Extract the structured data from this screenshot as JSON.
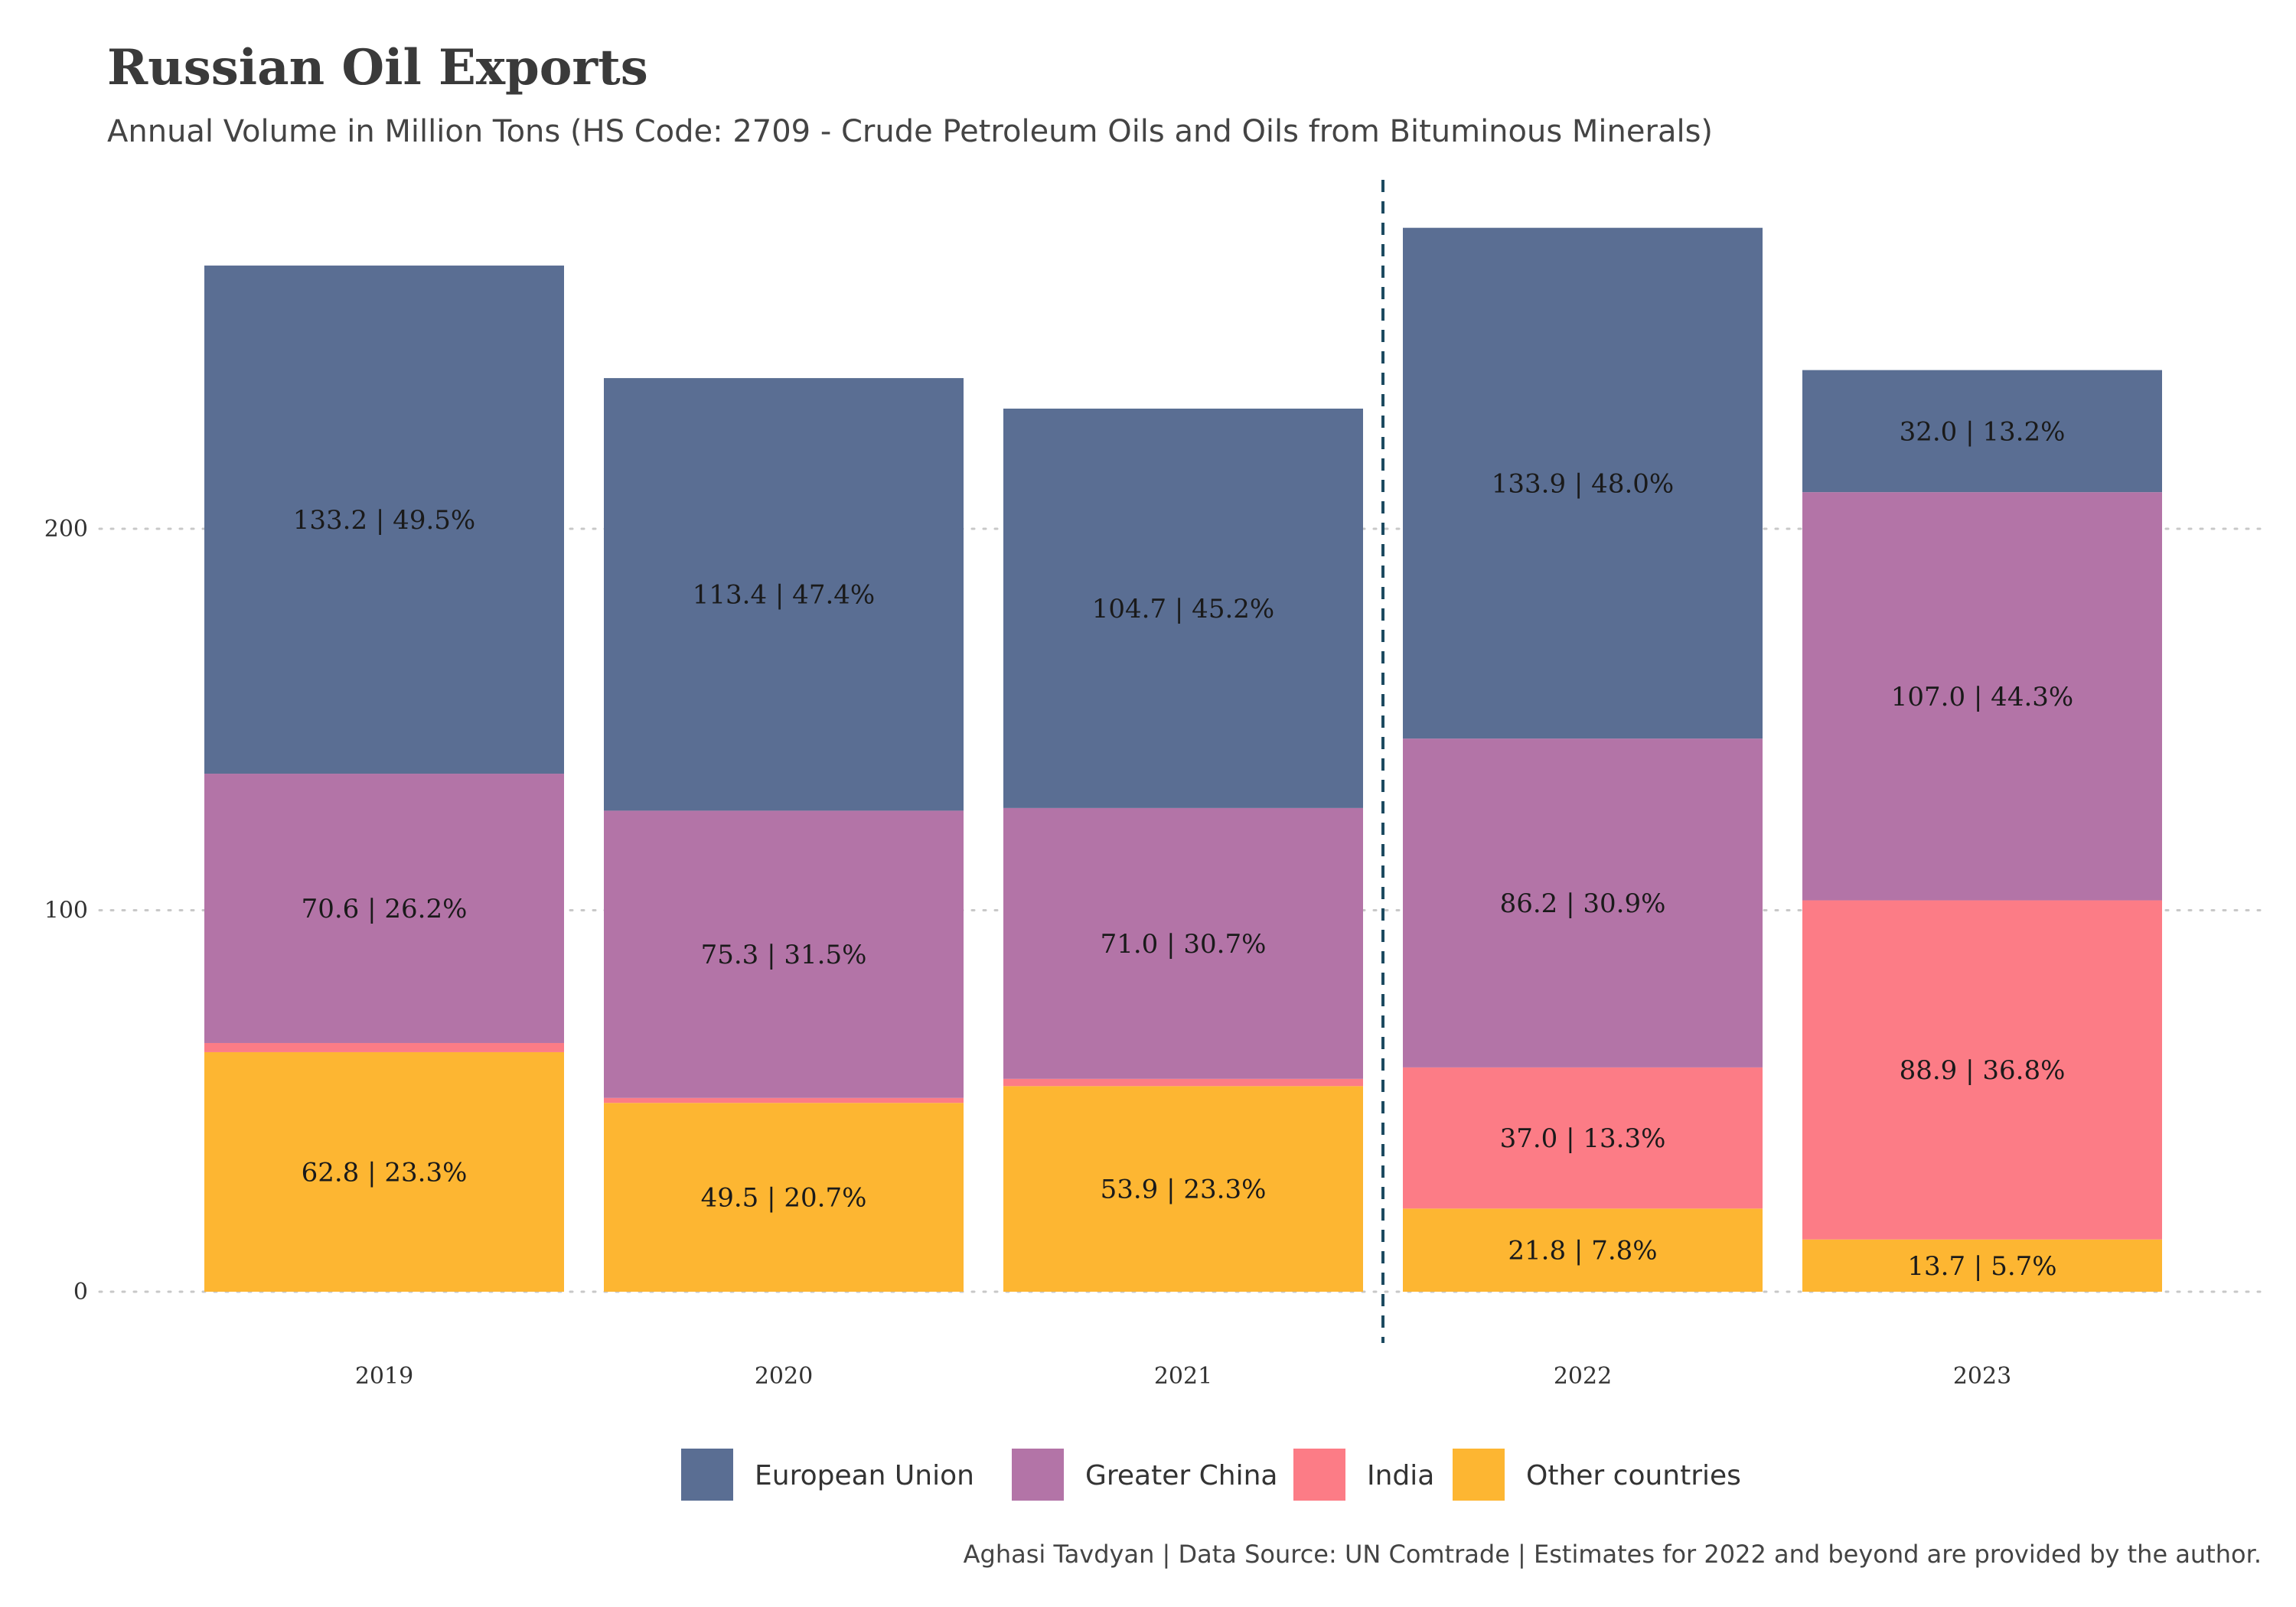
{
  "title": "Russian Oil Exports",
  "subtitle": "Annual Volume in Million Tons (HS Code: 2709 - Crude Petroleum Oils and Oils from Bituminous Minerals)",
  "caption": "Aghasi Tavdyan | Data Source: UN Comtrade | Estimates for 2022 and beyond are provided by the author.",
  "chart_data": {
    "type": "bar",
    "stacked": true,
    "categories": [
      "2019",
      "2020",
      "2021",
      "2022",
      "2023"
    ],
    "ylim": [
      0,
      280
    ],
    "yticks": [
      0,
      100,
      200
    ],
    "grid": "horizontal-dotted",
    "legend_position": "bottom",
    "reference_line": {
      "between": [
        "2021",
        "2022"
      ],
      "style": "dashed"
    },
    "series": [
      {
        "name": "Other countries",
        "color": "#FDB632",
        "values": [
          62.8,
          49.5,
          53.9,
          21.8,
          13.7
        ],
        "labels": [
          "62.8 | 23.3%",
          "49.5 | 20.7%",
          "53.9 | 23.3%",
          "21.8 | 7.8%",
          "13.7 | 5.7%"
        ]
      },
      {
        "name": "India",
        "color": "#FC7C86",
        "values": [
          2.4,
          1.3,
          1.9,
          37.0,
          88.9
        ],
        "labels": [
          null,
          null,
          null,
          "37.0 | 13.3%",
          "88.9 | 36.8%"
        ]
      },
      {
        "name": "Greater China",
        "color": "#B374A7",
        "values": [
          70.6,
          75.3,
          71.0,
          86.2,
          107.0
        ],
        "labels": [
          "70.6 | 26.2%",
          "75.3 | 31.5%",
          "71.0 | 30.7%",
          "86.2 | 30.9%",
          "107.0 | 44.3%"
        ]
      },
      {
        "name": "European Union",
        "color": "#5A6E93",
        "values": [
          133.2,
          113.4,
          104.7,
          133.9,
          32.0
        ],
        "labels": [
          "133.2 | 49.5%",
          "113.4 | 47.4%",
          "104.7 | 45.2%",
          "133.9 | 48.0%",
          "32.0 | 13.2%"
        ]
      }
    ],
    "legend_order": [
      "European Union",
      "Greater China",
      "India",
      "Other countries"
    ]
  }
}
